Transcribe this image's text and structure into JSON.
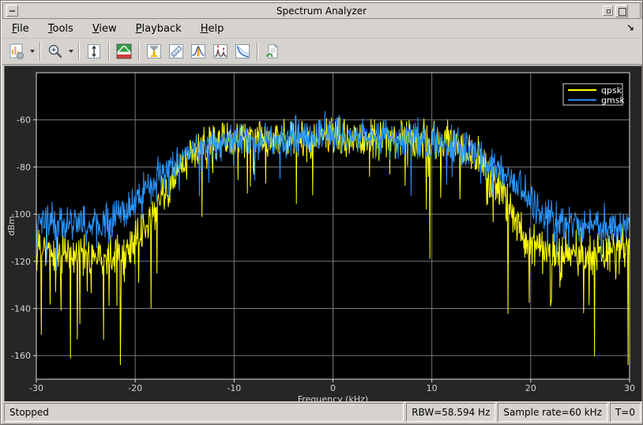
{
  "window": {
    "title": "Spectrum Analyzer",
    "buttons": [
      "window-menu",
      "minimize",
      "maximize"
    ]
  },
  "menu": {
    "items": [
      {
        "label": "File"
      },
      {
        "label": "Tools"
      },
      {
        "label": "View"
      },
      {
        "label": "Playback"
      },
      {
        "label": "Help"
      }
    ],
    "dock_arrow_glyph": "↘"
  },
  "toolbar": {
    "icons": [
      "settings-dropdown",
      "zoom-dropdown",
      "autoscale-y",
      "spectrum-settings",
      "cursor-measurements",
      "ruler-measurements",
      "peak-finder",
      "distortion-measurements",
      "ccdf",
      "generate-script"
    ]
  },
  "status": {
    "state": "Stopped",
    "rbw": "RBW=58.594 Hz",
    "sample_rate": "Sample rate=60 kHz",
    "time": "T=0"
  },
  "chart_data": {
    "type": "line",
    "title": "",
    "xlabel": "Frequency (kHz)",
    "ylabel": "dBm",
    "xlim": [
      -30,
      30
    ],
    "ylim": [
      -170,
      -40
    ],
    "xticks": [
      -30,
      -20,
      -10,
      0,
      10,
      20,
      30
    ],
    "yticks": [
      -160,
      -140,
      -120,
      -100,
      -80,
      -60
    ],
    "grid": true,
    "colors": {
      "plot_bg": "#000000",
      "panel_bg": "#262626",
      "grid": "#787878",
      "axis_border": "#dcdcdc",
      "tick_label": "#d4d4d4",
      "legend_border": "#d9d9d9",
      "legend_text": "#ffffff"
    },
    "legend": {
      "position": "top-right",
      "entries": [
        {
          "label": "qpsk",
          "color": "#ffff00"
        },
        {
          "label": "gmsk",
          "color": "#2a96ff"
        }
      ]
    },
    "points_per_khz": 20,
    "series": [
      {
        "name": "qpsk",
        "color": "#ffff00",
        "seed": 1234,
        "sigma": 4.2,
        "spike_prob": 0.1,
        "spike_mean": 10,
        "floor_boost": 2.2,
        "spike_cap": 46,
        "ceiling": -59,
        "floor_clip": -164,
        "envelope": [
          [
            -30,
            -114
          ],
          [
            -27,
            -117
          ],
          [
            -24,
            -117
          ],
          [
            -22,
            -116
          ],
          [
            -20,
            -113
          ],
          [
            -19,
            -107
          ],
          [
            -18,
            -98
          ],
          [
            -17,
            -90
          ],
          [
            -16,
            -84
          ],
          [
            -15,
            -78
          ],
          [
            -14,
            -74
          ],
          [
            -13,
            -71
          ],
          [
            -12,
            -69.5
          ],
          [
            -10,
            -68.5
          ],
          [
            -6,
            -68
          ],
          [
            0,
            -67
          ],
          [
            6,
            -68
          ],
          [
            10,
            -68.5
          ],
          [
            12,
            -69.5
          ],
          [
            13,
            -71
          ],
          [
            14,
            -74
          ],
          [
            15,
            -78
          ],
          [
            16,
            -84
          ],
          [
            17,
            -90
          ],
          [
            18,
            -98
          ],
          [
            19,
            -107
          ],
          [
            20,
            -113
          ],
          [
            22,
            -116
          ],
          [
            24,
            -117
          ],
          [
            27,
            -117
          ],
          [
            30,
            -114
          ]
        ]
      },
      {
        "name": "gmsk",
        "color": "#2a96ff",
        "seed": 99,
        "sigma": 3.8,
        "spike_prob": 0.08,
        "spike_mean": 6,
        "floor_boost": 1.6,
        "spike_cap": 19,
        "ceiling": -56,
        "floor_clip": -124,
        "envelope": [
          [
            -30,
            -103
          ],
          [
            -27,
            -104
          ],
          [
            -24,
            -104
          ],
          [
            -22,
            -102
          ],
          [
            -21,
            -99
          ],
          [
            -20,
            -95
          ],
          [
            -19,
            -90
          ],
          [
            -18,
            -86
          ],
          [
            -17,
            -82
          ],
          [
            -16,
            -78
          ],
          [
            -15,
            -75
          ],
          [
            -14,
            -72.5
          ],
          [
            -13,
            -71
          ],
          [
            -12,
            -70
          ],
          [
            -10,
            -69
          ],
          [
            -7,
            -68
          ],
          [
            -4,
            -67
          ],
          [
            0,
            -66.5
          ],
          [
            4,
            -67
          ],
          [
            7,
            -68
          ],
          [
            10,
            -69
          ],
          [
            12,
            -70
          ],
          [
            13,
            -71
          ],
          [
            14,
            -72.5
          ],
          [
            15,
            -75
          ],
          [
            16,
            -78
          ],
          [
            17,
            -82
          ],
          [
            18,
            -86
          ],
          [
            19,
            -90
          ],
          [
            20,
            -95
          ],
          [
            21,
            -99
          ],
          [
            22,
            -102
          ],
          [
            24,
            -104
          ],
          [
            27,
            -104
          ],
          [
            30,
            -103
          ]
        ]
      }
    ]
  }
}
